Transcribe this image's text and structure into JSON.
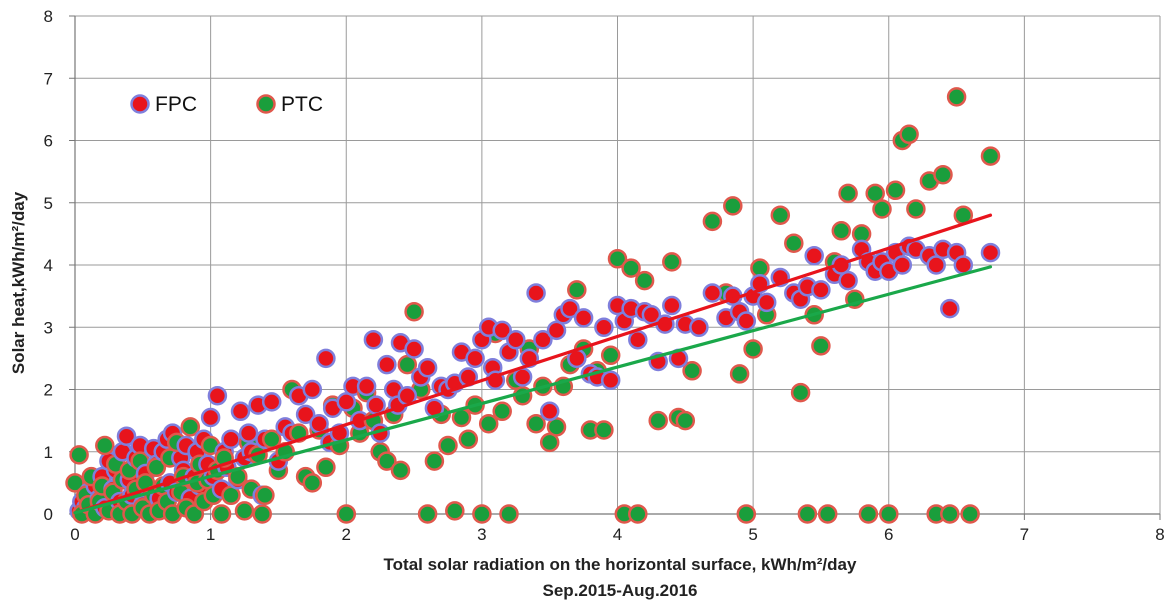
{
  "chart_data": {
    "type": "scatter",
    "xlabel": "Total solar radiation on the horizontal surface, kWh/m²/day",
    "ylabel": "Solar heat,kWh/m²/day",
    "subtitle": "Sep.2015-Aug.2016",
    "xlim": [
      0,
      8
    ],
    "ylim": [
      0,
      8
    ],
    "x_ticks": [
      "0",
      "1",
      "2",
      "3",
      "4",
      "5",
      "6",
      "7",
      "8"
    ],
    "y_ticks": [
      "0",
      "1",
      "2",
      "3",
      "4",
      "5",
      "6",
      "7",
      "8"
    ],
    "grid": true,
    "legend_placement": "top-left",
    "series": [
      {
        "name": "FPC",
        "fill": "#e8141c",
        "edge": "#7f7fdc",
        "trend_color": "#e8141c",
        "trend": [
          [
            0,
            0.02
          ],
          [
            6.75,
            4.8
          ]
        ],
        "points": [
          [
            0.03,
            0.05
          ],
          [
            0.05,
            0.2
          ],
          [
            0.08,
            0.1
          ],
          [
            0.1,
            0.35
          ],
          [
            0.12,
            0.15
          ],
          [
            0.15,
            0.45
          ],
          [
            0.18,
            0.25
          ],
          [
            0.2,
            0.6
          ],
          [
            0.22,
            0.1
          ],
          [
            0.25,
            0.85
          ],
          [
            0.28,
            0.4
          ],
          [
            0.3,
            0.7
          ],
          [
            0.33,
            0.2
          ],
          [
            0.35,
            1.0
          ],
          [
            0.38,
            1.25
          ],
          [
            0.4,
            0.55
          ],
          [
            0.42,
            0.3
          ],
          [
            0.45,
            0.9
          ],
          [
            0.48,
            1.1
          ],
          [
            0.5,
            0.15
          ],
          [
            0.52,
            0.65
          ],
          [
            0.55,
            0.4
          ],
          [
            0.58,
            1.05
          ],
          [
            0.6,
            0.8
          ],
          [
            0.62,
            0.25
          ],
          [
            0.65,
            1.0
          ],
          [
            0.68,
            1.2
          ],
          [
            0.7,
            0.5
          ],
          [
            0.72,
            1.3
          ],
          [
            0.75,
            0.35
          ],
          [
            0.78,
            0.9
          ],
          [
            0.8,
            0.7
          ],
          [
            0.82,
            1.1
          ],
          [
            0.85,
            0.25
          ],
          [
            0.88,
            0.6
          ],
          [
            0.9,
            1.0
          ],
          [
            0.92,
            0.45
          ],
          [
            0.95,
            1.2
          ],
          [
            0.98,
            0.8
          ],
          [
            1.0,
            1.55
          ],
          [
            1.02,
            0.6
          ],
          [
            1.05,
            1.9
          ],
          [
            1.08,
            0.4
          ],
          [
            1.1,
            1.0
          ],
          [
            1.12,
            0.75
          ],
          [
            1.15,
            1.2
          ],
          [
            1.2,
            0.55
          ],
          [
            1.22,
            1.65
          ],
          [
            1.25,
            0.9
          ],
          [
            1.28,
            1.3
          ],
          [
            1.3,
            1.0
          ],
          [
            1.35,
            1.75
          ],
          [
            1.38,
            0.3
          ],
          [
            1.4,
            1.2
          ],
          [
            1.45,
            1.8
          ],
          [
            1.5,
            0.85
          ],
          [
            1.55,
            1.4
          ],
          [
            1.6,
            1.3
          ],
          [
            1.65,
            1.9
          ],
          [
            1.7,
            1.6
          ],
          [
            1.75,
            2.0
          ],
          [
            1.8,
            1.45
          ],
          [
            1.85,
            2.5
          ],
          [
            1.88,
            1.15
          ],
          [
            1.9,
            1.7
          ],
          [
            1.95,
            1.3
          ],
          [
            2.0,
            1.8
          ],
          [
            2.05,
            2.05
          ],
          [
            2.1,
            1.5
          ],
          [
            2.15,
            2.05
          ],
          [
            2.2,
            2.8
          ],
          [
            2.22,
            1.75
          ],
          [
            2.25,
            1.3
          ],
          [
            2.3,
            2.4
          ],
          [
            2.35,
            2.0
          ],
          [
            2.38,
            1.75
          ],
          [
            2.4,
            2.75
          ],
          [
            2.45,
            1.9
          ],
          [
            2.5,
            2.65
          ],
          [
            2.55,
            2.2
          ],
          [
            2.6,
            2.35
          ],
          [
            2.65,
            1.7
          ],
          [
            2.7,
            2.05
          ],
          [
            2.75,
            2.0
          ],
          [
            2.8,
            2.1
          ],
          [
            2.85,
            2.6
          ],
          [
            2.9,
            2.2
          ],
          [
            2.95,
            2.5
          ],
          [
            3.0,
            2.8
          ],
          [
            3.05,
            3.0
          ],
          [
            3.08,
            2.35
          ],
          [
            3.1,
            2.15
          ],
          [
            3.15,
            2.95
          ],
          [
            3.2,
            2.6
          ],
          [
            3.25,
            2.8
          ],
          [
            3.3,
            2.2
          ],
          [
            3.35,
            2.5
          ],
          [
            3.4,
            3.55
          ],
          [
            3.45,
            2.8
          ],
          [
            3.5,
            1.65
          ],
          [
            3.55,
            2.95
          ],
          [
            3.6,
            3.2
          ],
          [
            3.65,
            3.3
          ],
          [
            3.7,
            2.5
          ],
          [
            3.75,
            3.15
          ],
          [
            3.8,
            2.25
          ],
          [
            3.85,
            2.2
          ],
          [
            3.9,
            3.0
          ],
          [
            3.95,
            2.15
          ],
          [
            4.0,
            3.35
          ],
          [
            4.05,
            3.1
          ],
          [
            4.1,
            3.3
          ],
          [
            4.15,
            2.8
          ],
          [
            4.2,
            3.25
          ],
          [
            4.25,
            3.2
          ],
          [
            4.3,
            2.45
          ],
          [
            4.35,
            3.05
          ],
          [
            4.4,
            3.35
          ],
          [
            4.45,
            2.5
          ],
          [
            4.5,
            3.05
          ],
          [
            4.6,
            3.0
          ],
          [
            4.7,
            3.55
          ],
          [
            4.8,
            3.15
          ],
          [
            4.85,
            3.5
          ],
          [
            4.9,
            3.25
          ],
          [
            4.95,
            3.1
          ],
          [
            5.0,
            3.5
          ],
          [
            5.05,
            3.7
          ],
          [
            5.1,
            3.4
          ],
          [
            5.2,
            3.8
          ],
          [
            5.3,
            3.55
          ],
          [
            5.35,
            3.45
          ],
          [
            5.4,
            3.65
          ],
          [
            5.45,
            4.15
          ],
          [
            5.5,
            3.6
          ],
          [
            5.6,
            3.85
          ],
          [
            5.65,
            4.0
          ],
          [
            5.7,
            3.75
          ],
          [
            5.8,
            4.25
          ],
          [
            5.85,
            4.05
          ],
          [
            5.9,
            3.9
          ],
          [
            5.95,
            4.05
          ],
          [
            6.0,
            3.9
          ],
          [
            6.05,
            4.2
          ],
          [
            6.1,
            4.0
          ],
          [
            6.15,
            4.3
          ],
          [
            6.2,
            4.25
          ],
          [
            6.3,
            4.15
          ],
          [
            6.35,
            4.0
          ],
          [
            6.4,
            4.25
          ],
          [
            6.45,
            3.3
          ],
          [
            6.5,
            4.2
          ],
          [
            6.55,
            4.0
          ],
          [
            6.75,
            4.2
          ]
        ]
      },
      {
        "name": "PTC",
        "fill": "#1a9e3c",
        "edge": "#e0584c",
        "trend_color": "#1aa84a",
        "trend": [
          [
            0,
            0.02
          ],
          [
            6.75,
            3.97
          ]
        ],
        "points": [
          [
            0.0,
            0.5
          ],
          [
            0.03,
            0.95
          ],
          [
            0.05,
            0.0
          ],
          [
            0.08,
            0.3
          ],
          [
            0.1,
            0.15
          ],
          [
            0.12,
            0.6
          ],
          [
            0.15,
            0.0
          ],
          [
            0.18,
            0.2
          ],
          [
            0.2,
            0.45
          ],
          [
            0.22,
            1.1
          ],
          [
            0.25,
            0.05
          ],
          [
            0.28,
            0.35
          ],
          [
            0.3,
            0.8
          ],
          [
            0.33,
            0.0
          ],
          [
            0.35,
            0.55
          ],
          [
            0.38,
            0.2
          ],
          [
            0.4,
            0.7
          ],
          [
            0.42,
            0.0
          ],
          [
            0.45,
            0.4
          ],
          [
            0.48,
            0.85
          ],
          [
            0.5,
            0.1
          ],
          [
            0.52,
            0.5
          ],
          [
            0.55,
            0.0
          ],
          [
            0.58,
            0.3
          ],
          [
            0.6,
            0.75
          ],
          [
            0.62,
            0.05
          ],
          [
            0.65,
            0.45
          ],
          [
            0.68,
            0.2
          ],
          [
            0.7,
            0.9
          ],
          [
            0.72,
            0.0
          ],
          [
            0.75,
            1.15
          ],
          [
            0.78,
            0.35
          ],
          [
            0.8,
            0.6
          ],
          [
            0.82,
            0.1
          ],
          [
            0.85,
            1.4
          ],
          [
            0.88,
            0.0
          ],
          [
            0.9,
            0.5
          ],
          [
            0.92,
            0.8
          ],
          [
            0.95,
            0.2
          ],
          [
            0.98,
            0.55
          ],
          [
            1.0,
            1.1
          ],
          [
            1.02,
            0.3
          ],
          [
            1.05,
            0.7
          ],
          [
            1.08,
            0.0
          ],
          [
            1.1,
            0.9
          ],
          [
            1.15,
            0.3
          ],
          [
            1.2,
            0.6
          ],
          [
            1.25,
            0.05
          ],
          [
            1.28,
            1.15
          ],
          [
            1.3,
            0.4
          ],
          [
            1.35,
            0.95
          ],
          [
            1.38,
            0.0
          ],
          [
            1.4,
            0.3
          ],
          [
            1.45,
            1.2
          ],
          [
            1.5,
            0.7
          ],
          [
            1.55,
            1.0
          ],
          [
            1.6,
            2.0
          ],
          [
            1.65,
            1.3
          ],
          [
            1.7,
            0.6
          ],
          [
            1.75,
            0.5
          ],
          [
            1.8,
            1.35
          ],
          [
            1.85,
            0.75
          ],
          [
            1.9,
            1.75
          ],
          [
            1.95,
            1.1
          ],
          [
            2.0,
            0.0
          ],
          [
            2.05,
            1.7
          ],
          [
            2.1,
            1.3
          ],
          [
            2.15,
            1.95
          ],
          [
            2.2,
            1.5
          ],
          [
            2.25,
            1.0
          ],
          [
            2.3,
            0.85
          ],
          [
            2.35,
            1.6
          ],
          [
            2.4,
            0.7
          ],
          [
            2.45,
            2.4
          ],
          [
            2.5,
            3.25
          ],
          [
            2.55,
            2.0
          ],
          [
            2.6,
            0.0
          ],
          [
            2.65,
            0.85
          ],
          [
            2.7,
            1.6
          ],
          [
            2.75,
            1.1
          ],
          [
            2.8,
            0.05
          ],
          [
            2.85,
            1.55
          ],
          [
            2.9,
            1.2
          ],
          [
            2.95,
            1.75
          ],
          [
            3.0,
            0.0
          ],
          [
            3.05,
            1.45
          ],
          [
            3.1,
            2.9
          ],
          [
            3.15,
            1.65
          ],
          [
            3.2,
            0.0
          ],
          [
            3.25,
            2.15
          ],
          [
            3.3,
            1.9
          ],
          [
            3.35,
            2.65
          ],
          [
            3.4,
            1.45
          ],
          [
            3.45,
            2.05
          ],
          [
            3.5,
            1.15
          ],
          [
            3.55,
            1.4
          ],
          [
            3.6,
            2.05
          ],
          [
            3.65,
            2.4
          ],
          [
            3.7,
            3.6
          ],
          [
            3.75,
            2.65
          ],
          [
            3.8,
            1.35
          ],
          [
            3.85,
            2.3
          ],
          [
            3.9,
            1.35
          ],
          [
            3.95,
            2.55
          ],
          [
            4.0,
            4.1
          ],
          [
            4.05,
            0.0
          ],
          [
            4.1,
            3.95
          ],
          [
            4.15,
            0.0
          ],
          [
            4.2,
            3.75
          ],
          [
            4.3,
            1.5
          ],
          [
            4.4,
            4.05
          ],
          [
            4.45,
            1.55
          ],
          [
            4.5,
            1.5
          ],
          [
            4.55,
            2.3
          ],
          [
            4.7,
            4.7
          ],
          [
            4.8,
            3.55
          ],
          [
            4.85,
            4.95
          ],
          [
            4.9,
            2.25
          ],
          [
            4.95,
            0.0
          ],
          [
            5.0,
            2.65
          ],
          [
            5.05,
            3.95
          ],
          [
            5.1,
            3.2
          ],
          [
            5.2,
            4.8
          ],
          [
            5.3,
            4.35
          ],
          [
            5.35,
            1.95
          ],
          [
            5.4,
            0.0
          ],
          [
            5.45,
            3.2
          ],
          [
            5.5,
            2.7
          ],
          [
            5.55,
            0.0
          ],
          [
            5.6,
            4.05
          ],
          [
            5.65,
            4.55
          ],
          [
            5.7,
            5.15
          ],
          [
            5.75,
            3.45
          ],
          [
            5.8,
            4.5
          ],
          [
            5.85,
            0.0
          ],
          [
            5.9,
            5.15
          ],
          [
            5.95,
            4.9
          ],
          [
            6.0,
            0.0
          ],
          [
            6.05,
            5.2
          ],
          [
            6.1,
            6.0
          ],
          [
            6.15,
            6.1
          ],
          [
            6.2,
            4.9
          ],
          [
            6.3,
            5.35
          ],
          [
            6.35,
            0.0
          ],
          [
            6.4,
            5.45
          ],
          [
            6.45,
            0.0
          ],
          [
            6.5,
            6.7
          ],
          [
            6.55,
            4.8
          ],
          [
            6.6,
            0.0
          ],
          [
            6.75,
            5.75
          ]
        ]
      }
    ]
  }
}
